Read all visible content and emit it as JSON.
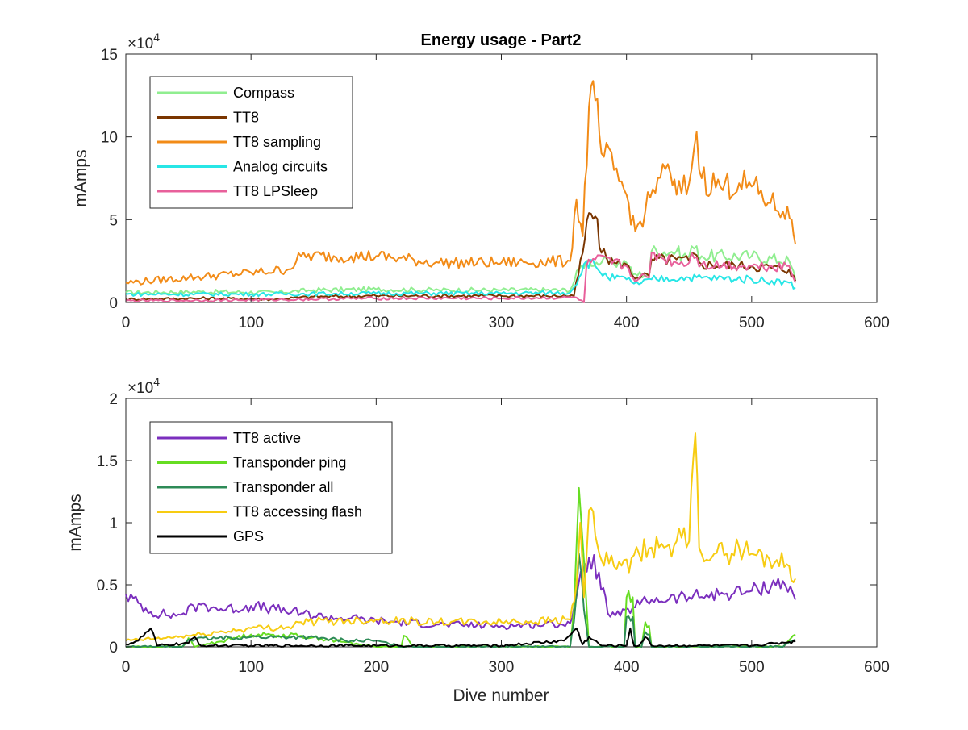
{
  "figure": {
    "title": "Energy usage - Part2"
  },
  "chart_data": [
    {
      "type": "line",
      "title": "Energy usage - Part2",
      "xlabel": "",
      "ylabel": "mAmps",
      "xlim": [
        0,
        600
      ],
      "ylim": [
        0,
        150000
      ],
      "exponent_label": "×10",
      "exponent_power": "4",
      "xticks": [
        "0",
        "100",
        "200",
        "300",
        "400",
        "500",
        "600"
      ],
      "yticks": [
        "0",
        "5",
        "10",
        "15"
      ],
      "ytick_values": [
        0,
        50000,
        100000,
        150000
      ],
      "grid": false,
      "legend_position": "top-left",
      "series": [
        {
          "name": "Compass",
          "color": "#90ee90",
          "points": [
            [
              0,
              6000
            ],
            [
              60,
              6500
            ],
            [
              120,
              6000
            ],
            [
              150,
              7500
            ],
            [
              200,
              8000
            ],
            [
              250,
              7500
            ],
            [
              300,
              7500
            ],
            [
              355,
              7500
            ],
            [
              362,
              20000
            ],
            [
              368,
              25000
            ],
            [
              380,
              24000
            ],
            [
              400,
              24000
            ],
            [
              405,
              17000
            ],
            [
              418,
              17000
            ],
            [
              420,
              31000
            ],
            [
              440,
              31000
            ],
            [
              445,
              28000
            ],
            [
              450,
              28000
            ],
            [
              452,
              34000
            ],
            [
              460,
              28000
            ],
            [
              500,
              28000
            ],
            [
              530,
              25000
            ],
            [
              535,
              14000
            ]
          ]
        },
        {
          "name": "TT8",
          "color": "#7a3500",
          "points": [
            [
              0,
              2000
            ],
            [
              60,
              2500
            ],
            [
              120,
              2000
            ],
            [
              150,
              3500
            ],
            [
              200,
              4000
            ],
            [
              250,
              4000
            ],
            [
              300,
              4000
            ],
            [
              358,
              4000
            ],
            [
              365,
              30000
            ],
            [
              370,
              54000
            ],
            [
              375,
              52000
            ],
            [
              380,
              30000
            ],
            [
              390,
              24000
            ],
            [
              400,
              23000
            ],
            [
              405,
              16000
            ],
            [
              418,
              16000
            ],
            [
              420,
              26000
            ],
            [
              440,
              26000
            ],
            [
              450,
              25000
            ],
            [
              452,
              30000
            ],
            [
              460,
              23000
            ],
            [
              500,
              22000
            ],
            [
              530,
              20000
            ],
            [
              535,
              13000
            ]
          ]
        },
        {
          "name": "TT8 sampling",
          "color": "#f28b17",
          "points": [
            [
              0,
              12000
            ],
            [
              50,
              15000
            ],
            [
              100,
              18000
            ],
            [
              130,
              20000
            ],
            [
              140,
              28000
            ],
            [
              180,
              28000
            ],
            [
              200,
              28000
            ],
            [
              250,
              24000
            ],
            [
              300,
              24000
            ],
            [
              355,
              25000
            ],
            [
              360,
              62000
            ],
            [
              365,
              40000
            ],
            [
              370,
              118000
            ],
            [
              375,
              122000
            ],
            [
              380,
              90000
            ],
            [
              390,
              80000
            ],
            [
              400,
              65000
            ],
            [
              407,
              43000
            ],
            [
              415,
              55000
            ],
            [
              425,
              75000
            ],
            [
              435,
              78000
            ],
            [
              440,
              65000
            ],
            [
              450,
              72000
            ],
            [
              456,
              103000
            ],
            [
              460,
              75000
            ],
            [
              475,
              70000
            ],
            [
              490,
              72000
            ],
            [
              500,
              70000
            ],
            [
              515,
              60000
            ],
            [
              525,
              55000
            ],
            [
              532,
              50000
            ],
            [
              535,
              35000
            ]
          ]
        },
        {
          "name": "Analog circuits",
          "color": "#28e6e6",
          "points": [
            [
              0,
              5000
            ],
            [
              100,
              5000
            ],
            [
              200,
              5500
            ],
            [
              300,
              5500
            ],
            [
              355,
              6000
            ],
            [
              362,
              15000
            ],
            [
              368,
              25000
            ],
            [
              375,
              22000
            ],
            [
              385,
              15000
            ],
            [
              400,
              14000
            ],
            [
              410,
              11000
            ],
            [
              420,
              14000
            ],
            [
              450,
              15000
            ],
            [
              500,
              14000
            ],
            [
              530,
              12000
            ],
            [
              535,
              9000
            ]
          ]
        },
        {
          "name": "TT8 LPSleep",
          "color": "#e8609b",
          "points": [
            [
              0,
              1000
            ],
            [
              100,
              1500
            ],
            [
              200,
              2500
            ],
            [
              300,
              2500
            ],
            [
              360,
              3000
            ],
            [
              366,
              0
            ],
            [
              368,
              22000
            ],
            [
              375,
              26000
            ],
            [
              400,
              22000
            ],
            [
              405,
              15000
            ],
            [
              418,
              15000
            ],
            [
              420,
              30000
            ],
            [
              440,
              24000
            ],
            [
              450,
              24000
            ],
            [
              452,
              30000
            ],
            [
              460,
              23000
            ],
            [
              500,
              22000
            ],
            [
              530,
              22000
            ],
            [
              535,
              12000
            ]
          ]
        }
      ]
    },
    {
      "type": "line",
      "title": "",
      "xlabel": "Dive number",
      "ylabel": "mAmps",
      "xlim": [
        0,
        600
      ],
      "ylim": [
        0,
        20000
      ],
      "exponent_label": "×10",
      "exponent_power": "4",
      "xticks": [
        "0",
        "100",
        "200",
        "300",
        "400",
        "500",
        "600"
      ],
      "yticks": [
        "0",
        "0.5",
        "1",
        "1.5",
        "2"
      ],
      "ytick_values": [
        0,
        5000,
        10000,
        15000,
        20000
      ],
      "grid": false,
      "legend_position": "top-left",
      "series": [
        {
          "name": "TT8 active",
          "color": "#7b2fbe",
          "points": [
            [
              0,
              4200
            ],
            [
              20,
              2800
            ],
            [
              40,
              2500
            ],
            [
              60,
              3400
            ],
            [
              80,
              3000
            ],
            [
              100,
              3300
            ],
            [
              120,
              3000
            ],
            [
              140,
              2700
            ],
            [
              160,
              2400
            ],
            [
              180,
              2300
            ],
            [
              200,
              2100
            ],
            [
              250,
              1800
            ],
            [
              300,
              1700
            ],
            [
              355,
              1900
            ],
            [
              360,
              4000
            ],
            [
              365,
              6000
            ],
            [
              370,
              7200
            ],
            [
              378,
              6000
            ],
            [
              385,
              2700
            ],
            [
              395,
              2500
            ],
            [
              405,
              3200
            ],
            [
              420,
              3800
            ],
            [
              450,
              4000
            ],
            [
              480,
              4300
            ],
            [
              500,
              4500
            ],
            [
              525,
              5300
            ],
            [
              535,
              3800
            ]
          ]
        },
        {
          "name": "Transponder ping",
          "color": "#66dd22",
          "points": [
            [
              0,
              0
            ],
            [
              45,
              0
            ],
            [
              50,
              700
            ],
            [
              55,
              0
            ],
            [
              100,
              1000
            ],
            [
              140,
              900
            ],
            [
              200,
              0
            ],
            [
              220,
              0
            ],
            [
              222,
              900
            ],
            [
              230,
              0
            ],
            [
              355,
              0
            ],
            [
              358,
              3000
            ],
            [
              362,
              12800
            ],
            [
              366,
              7000
            ],
            [
              370,
              0
            ],
            [
              398,
              0
            ],
            [
              400,
              4000
            ],
            [
              405,
              4000
            ],
            [
              407,
              0
            ],
            [
              412,
              0
            ],
            [
              415,
              2000
            ],
            [
              418,
              1700
            ],
            [
              420,
              0
            ],
            [
              525,
              0
            ],
            [
              535,
              1000
            ]
          ]
        },
        {
          "name": "Transponder all",
          "color": "#2e8b57",
          "points": [
            [
              0,
              0
            ],
            [
              45,
              0
            ],
            [
              50,
              600
            ],
            [
              100,
              800
            ],
            [
              140,
              800
            ],
            [
              180,
              500
            ],
            [
              200,
              500
            ],
            [
              220,
              0
            ],
            [
              355,
              0
            ],
            [
              358,
              2000
            ],
            [
              362,
              7500
            ],
            [
              366,
              3000
            ],
            [
              370,
              0
            ],
            [
              398,
              0
            ],
            [
              400,
              2400
            ],
            [
              405,
              2400
            ],
            [
              407,
              0
            ],
            [
              412,
              0
            ],
            [
              415,
              1200
            ],
            [
              418,
              1000
            ],
            [
              420,
              0
            ],
            [
              525,
              0
            ],
            [
              535,
              600
            ]
          ]
        },
        {
          "name": "TT8 accessing flash",
          "color": "#f7cc12",
          "points": [
            [
              0,
              500
            ],
            [
              30,
              700
            ],
            [
              60,
              1000
            ],
            [
              100,
              1500
            ],
            [
              130,
              1600
            ],
            [
              140,
              2000
            ],
            [
              200,
              2200
            ],
            [
              250,
              2000
            ],
            [
              300,
              2000
            ],
            [
              355,
              2200
            ],
            [
              360,
              5000
            ],
            [
              363,
              10000
            ],
            [
              366,
              4000
            ],
            [
              370,
              11000
            ],
            [
              375,
              9000
            ],
            [
              380,
              7000
            ],
            [
              390,
              6500
            ],
            [
              398,
              7000
            ],
            [
              402,
              6000
            ],
            [
              410,
              7500
            ],
            [
              420,
              8000
            ],
            [
              430,
              8000
            ],
            [
              440,
              8500
            ],
            [
              450,
              8500
            ],
            [
              455,
              17200
            ],
            [
              458,
              8000
            ],
            [
              470,
              7500
            ],
            [
              480,
              7500
            ],
            [
              490,
              8000
            ],
            [
              500,
              7500
            ],
            [
              520,
              7000
            ],
            [
              530,
              6500
            ],
            [
              535,
              5500
            ]
          ]
        },
        {
          "name": "GPS",
          "color": "#000000",
          "points": [
            [
              0,
              200
            ],
            [
              10,
              500
            ],
            [
              20,
              1500
            ],
            [
              25,
              100
            ],
            [
              50,
              300
            ],
            [
              55,
              800
            ],
            [
              60,
              100
            ],
            [
              100,
              100
            ],
            [
              200,
              100
            ],
            [
              300,
              100
            ],
            [
              350,
              500
            ],
            [
              360,
              1500
            ],
            [
              365,
              200
            ],
            [
              370,
              800
            ],
            [
              380,
              100
            ],
            [
              400,
              100
            ],
            [
              403,
              1500
            ],
            [
              406,
              100
            ],
            [
              410,
              100
            ],
            [
              415,
              800
            ],
            [
              420,
              100
            ],
            [
              450,
              100
            ],
            [
              500,
              100
            ],
            [
              530,
              400
            ],
            [
              535,
              400
            ]
          ]
        }
      ]
    }
  ]
}
